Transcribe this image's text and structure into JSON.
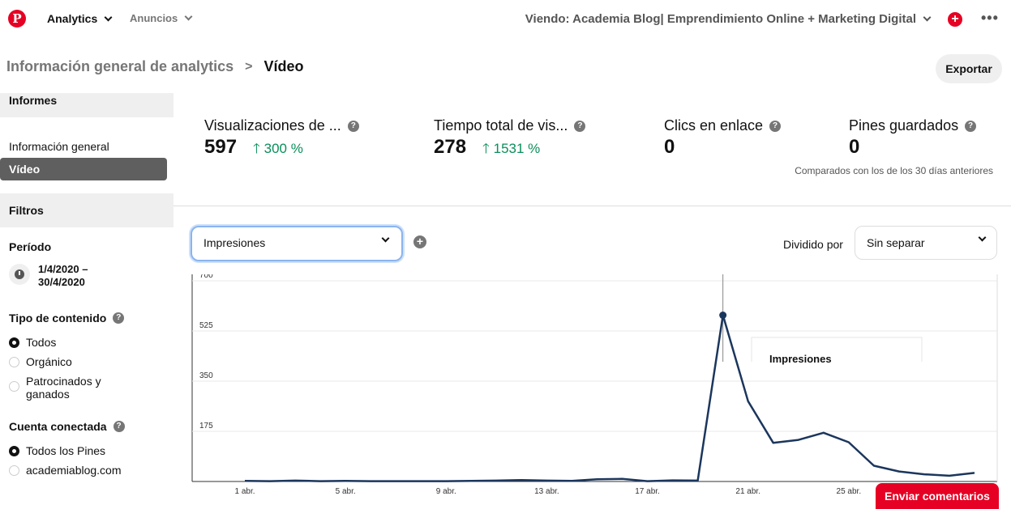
{
  "topbar": {
    "logo": "P",
    "analytics_label": "Analytics",
    "ads_label": "Anuncios",
    "viewing": "Viendo: Academia Blog| Emprendimiento Online + Marketing Digital",
    "create_icon": "plus-icon",
    "more_label": "•••"
  },
  "breadcrumb": {
    "parent": "Información general de analytics",
    "separator": ">",
    "current": "Vídeo"
  },
  "export_label": "Exportar",
  "sidebar": {
    "reports_header": "Informes",
    "items": [
      {
        "label": "Información general",
        "active": false
      },
      {
        "label": "Vídeo",
        "active": true
      }
    ],
    "filters_header": "Filtros",
    "period_label": "Período",
    "period_value": "1/4/2020 – 30/4/2020",
    "content_type_label": "Tipo de contenido",
    "content_type_options": [
      {
        "label": "Todos",
        "selected": true
      },
      {
        "label": "Orgánico",
        "selected": false
      },
      {
        "label": "Patrocinados y ganados",
        "selected": false
      }
    ],
    "account_label": "Cuenta conectada",
    "account_options": [
      {
        "label": "Todos los Pines",
        "selected": true
      },
      {
        "label": "academiablog.com",
        "selected": false
      }
    ]
  },
  "metrics": [
    {
      "title": "Visualizaciones de ...",
      "value": "597",
      "change": "300 %"
    },
    {
      "title": "Tiempo total de vis...",
      "value": "278",
      "change": "1531 %"
    },
    {
      "title": "Clics en enlace",
      "value": "0",
      "change": ""
    },
    {
      "title": "Pines guardados",
      "value": "0",
      "change": ""
    }
  ],
  "compare_note": "Comparados con los de los 30 días anteriores",
  "metric_select_value": "Impresiones",
  "split_label": "Dividido por",
  "split_select_value": "Sin separar",
  "tooltip_title": "Impresiones",
  "feedback_label": "Enviar comentarios",
  "colors": {
    "brand": "#e60023",
    "positive": "#0a8f5a",
    "line": "#1b365d"
  },
  "chart_data": {
    "type": "line",
    "y_ticks": [
      "700",
      "525",
      "350",
      "175"
    ],
    "x_ticks": [
      "1 abr.",
      "5 abr.",
      "9 abr.",
      "13 abr.",
      "17 abr.",
      "21 abr.",
      "25 abr."
    ],
    "ylim": [
      0,
      700
    ],
    "x": [
      1,
      2,
      3,
      4,
      5,
      6,
      7,
      8,
      9,
      10,
      11,
      12,
      13,
      14,
      15,
      16,
      17,
      18,
      19,
      20,
      21,
      22,
      23,
      24,
      25,
      26,
      27,
      28,
      29,
      30
    ],
    "series": [
      {
        "name": "Impresiones",
        "values": [
          2,
          1,
          3,
          1,
          2,
          1,
          1,
          1,
          1,
          2,
          3,
          5,
          3,
          2,
          8,
          9,
          1,
          4,
          3,
          580,
          280,
          135,
          145,
          170,
          137,
          55,
          35,
          25,
          20,
          30
        ]
      }
    ],
    "highlight_x": 20,
    "grid": true
  }
}
